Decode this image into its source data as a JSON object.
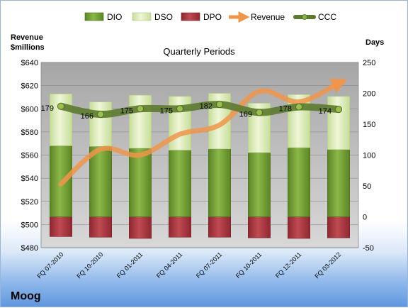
{
  "chart_data": {
    "type": "bar",
    "title": "Quarterly Periods",
    "company": "Moog",
    "left_axis_label": [
      "Revenue",
      "$millions"
    ],
    "right_axis_label": "Days",
    "categories": [
      "FQ 07-2010",
      "FQ 10-2010",
      "FQ 01-2011",
      "FQ 04-2011",
      "FQ 07-2011",
      "FQ 10-2011",
      "FQ 12-2011",
      "FQ 03-2012"
    ],
    "left_axis": {
      "min": 480,
      "max": 640,
      "step": 20,
      "ticks": [
        "$480",
        "$500",
        "$520",
        "$540",
        "$560",
        "$580",
        "$600",
        "$620",
        "$640"
      ]
    },
    "right_axis": {
      "min": -50,
      "max": 250,
      "step": 50,
      "ticks": [
        "-50",
        "0",
        "50",
        "100",
        "150",
        "200",
        "250"
      ]
    },
    "legend": [
      "DIO",
      "DSO",
      "DPO",
      "Revenue",
      "CCC"
    ],
    "legend_position": "top",
    "series": [
      {
        "name": "DIO",
        "axis": "right",
        "kind": "stacked-bar",
        "color": "#6f9a2c",
        "values": [
          115,
          114,
          111,
          108,
          110,
          104,
          112,
          109
        ]
      },
      {
        "name": "DSO",
        "axis": "right",
        "kind": "stacked-bar",
        "color": "#d9eab0",
        "values": [
          84,
          72,
          86,
          87,
          90,
          80,
          86,
          86
        ]
      },
      {
        "name": "DPO",
        "axis": "right",
        "kind": "bar-negative",
        "color": "#a8343c",
        "values": [
          -32,
          -33,
          -35,
          -33,
          -33,
          -34,
          -35,
          -34
        ]
      },
      {
        "name": "Revenue",
        "axis": "left",
        "kind": "line",
        "color": "#f0954a",
        "values": [
          535,
          565,
          560,
          578,
          586,
          615,
          606,
          622
        ]
      },
      {
        "name": "CCC",
        "axis": "right",
        "kind": "line",
        "color": "#5c7a2e",
        "values": [
          179,
          166,
          175,
          175,
          182,
          169,
          178,
          174
        ]
      }
    ],
    "ccc_labels": [
      "179",
      "166",
      "175",
      "175",
      "182",
      "169",
      "178",
      "174"
    ],
    "grid": true
  }
}
